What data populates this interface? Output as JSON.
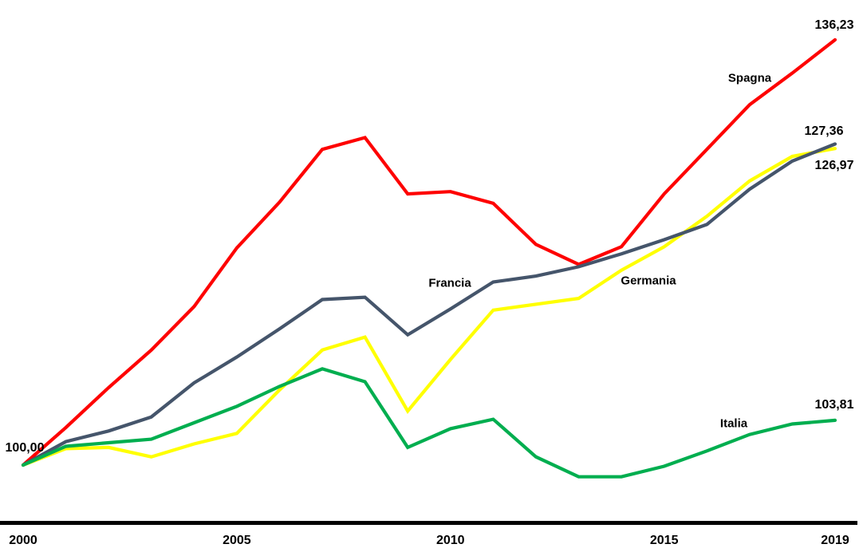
{
  "chart_data": {
    "type": "line",
    "title": "",
    "subtitle": "",
    "x": [
      2000,
      2001,
      2002,
      2003,
      2004,
      2005,
      2006,
      2007,
      2008,
      2009,
      2010,
      2011,
      2012,
      2013,
      2014,
      2015,
      2016,
      2017,
      2018,
      2019
    ],
    "x_axis": {
      "tick_labels": [
        "2000",
        "2005",
        "2010",
        "2015",
        "2019"
      ],
      "tick_years": [
        2000,
        2005,
        2010,
        2015,
        2019
      ]
    },
    "y_axis": {
      "visible": false,
      "baseline_value": 100,
      "start_label": "100,00"
    },
    "ylim": [
      96.5,
      140
    ],
    "grid": false,
    "legend": "inline-series-labels",
    "series": [
      {
        "name": "Spagna",
        "color": "#FE0000",
        "end_label": "136,23",
        "values": [
          100.0,
          103.2,
          106.6,
          109.8,
          113.5,
          118.5,
          122.4,
          126.9,
          127.9,
          123.1,
          123.3,
          122.3,
          118.8,
          117.1,
          118.6,
          123.1,
          126.9,
          130.7,
          133.4,
          136.23
        ]
      },
      {
        "name": "Germania",
        "color": "#FFFF00",
        "end_label": "126,97",
        "values": [
          100.0,
          101.4,
          101.5,
          100.7,
          101.8,
          102.7,
          106.4,
          109.8,
          110.9,
          104.6,
          109.0,
          113.2,
          113.7,
          114.2,
          116.6,
          118.6,
          121.2,
          124.2,
          126.3,
          126.97
        ]
      },
      {
        "name": "Francia",
        "color": "#45556B",
        "end_label": "127,36",
        "values": [
          100.0,
          102.0,
          102.9,
          104.1,
          107.0,
          109.2,
          111.6,
          114.1,
          114.3,
          111.1,
          113.3,
          115.6,
          116.1,
          116.9,
          118.0,
          119.2,
          120.5,
          123.5,
          125.9,
          127.36
        ]
      },
      {
        "name": "Italia",
        "color": "#00AE4F",
        "end_label": "103,81",
        "values": [
          100.0,
          101.6,
          101.9,
          102.2,
          103.6,
          105.0,
          106.7,
          108.2,
          107.1,
          101.5,
          103.1,
          103.9,
          100.7,
          99.0,
          99.0,
          99.9,
          101.2,
          102.6,
          103.5,
          103.81
        ]
      }
    ]
  }
}
